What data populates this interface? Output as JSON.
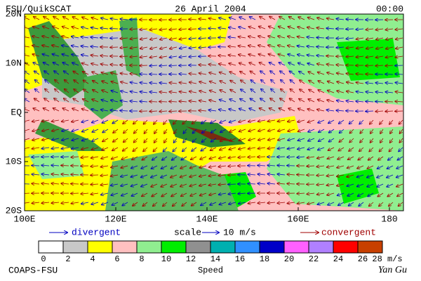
{
  "header": {
    "source": "FSU/QuikSCAT",
    "date": "26 April 2004",
    "time": "00:00"
  },
  "map": {
    "lat_labels": [
      "20N",
      "10N",
      "EQ",
      "10S",
      "20S"
    ],
    "lon_labels": [
      "100E",
      "120E",
      "140E",
      "160E",
      "180"
    ]
  },
  "legend": {
    "divergent": "divergent",
    "scale": "scale",
    "scale_value": "10 m/s",
    "convergent": "convergent"
  },
  "colorbar": {
    "title": "Speed",
    "labels": [
      "0",
      "2",
      "4",
      "6",
      "8",
      "10",
      "12",
      "14",
      "16",
      "18",
      "20",
      "22",
      "24",
      "26",
      "28 m/s"
    ],
    "colors": [
      "#ffffff",
      "#c8c8c8",
      "#ffff00",
      "#ffc0c0",
      "#90ee90",
      "#00ee00",
      "#909090",
      "#00b0b0",
      "#3090ff",
      "#0000c8",
      "#ff60ff",
      "#b080ff",
      "#ff0000",
      "#c84000",
      "#000000"
    ]
  },
  "footer": {
    "credit": "COAPS-FSU",
    "author": "Yan Gu"
  }
}
